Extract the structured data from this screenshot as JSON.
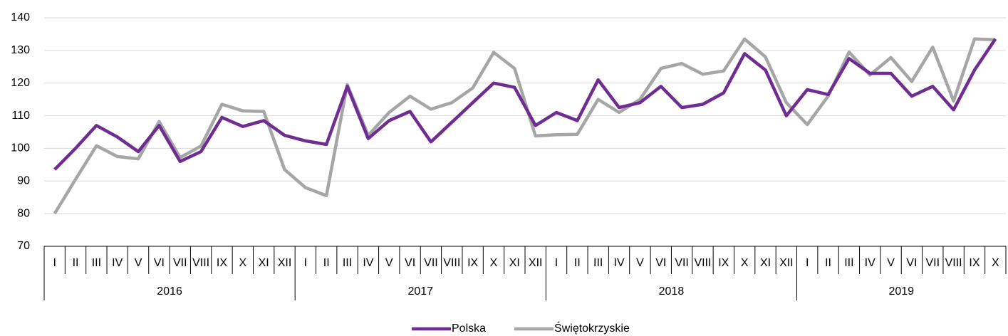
{
  "chart_data": {
    "type": "line",
    "categories": [
      "I",
      "II",
      "III",
      "IV",
      "V",
      "VI",
      "VII",
      "VIII",
      "IX",
      "X",
      "XI",
      "XII",
      "I",
      "II",
      "III",
      "IV",
      "V",
      "VI",
      "VII",
      "VIII",
      "IX",
      "X",
      "XI",
      "XII",
      "I",
      "II",
      "III",
      "IV",
      "V",
      "VI",
      "VII",
      "VIII",
      "IX",
      "X",
      "XI",
      "XII",
      "I",
      "II",
      "III",
      "IV",
      "V",
      "VI",
      "VII",
      "VIII",
      "IX",
      "X"
    ],
    "groups": [
      "2016",
      "2017",
      "2018",
      "2019"
    ],
    "series": [
      {
        "name": "Polska",
        "color": "#6f2c91",
        "values": [
          93.5,
          100,
          107,
          103.5,
          99,
          107,
          96,
          99,
          109.5,
          106.7,
          108.5,
          104,
          102.3,
          101.2,
          119,
          103,
          108.5,
          111.3,
          102,
          108,
          114,
          120,
          118.7,
          107,
          111,
          108.5,
          121,
          112.5,
          114,
          119,
          112.5,
          113.5,
          117,
          129,
          124,
          110,
          118,
          116.5,
          127.5,
          123,
          123,
          116,
          119,
          111.8,
          124,
          133.5
        ]
      },
      {
        "name": "Świętokrzyskie",
        "color": "#a6a6a6",
        "values": [
          80,
          90.5,
          100.8,
          97.5,
          96.8,
          108.2,
          97.2,
          100.7,
          113.5,
          111.5,
          111.3,
          93.5,
          88,
          85.5,
          119.5,
          104,
          111,
          116,
          112,
          114,
          118.5,
          129.4,
          124.5,
          103.8,
          104.2,
          104.3,
          115,
          111,
          115,
          124.5,
          126,
          122.7,
          123.7,
          133.5,
          128,
          114,
          107.3,
          116,
          129.5,
          122.5,
          127.8,
          120.5,
          131,
          114.5,
          133.5,
          133.3
        ]
      }
    ],
    "ylim": [
      70,
      140
    ],
    "yticks": [
      70,
      80,
      90,
      100,
      110,
      120,
      130,
      140
    ],
    "grid": true
  }
}
